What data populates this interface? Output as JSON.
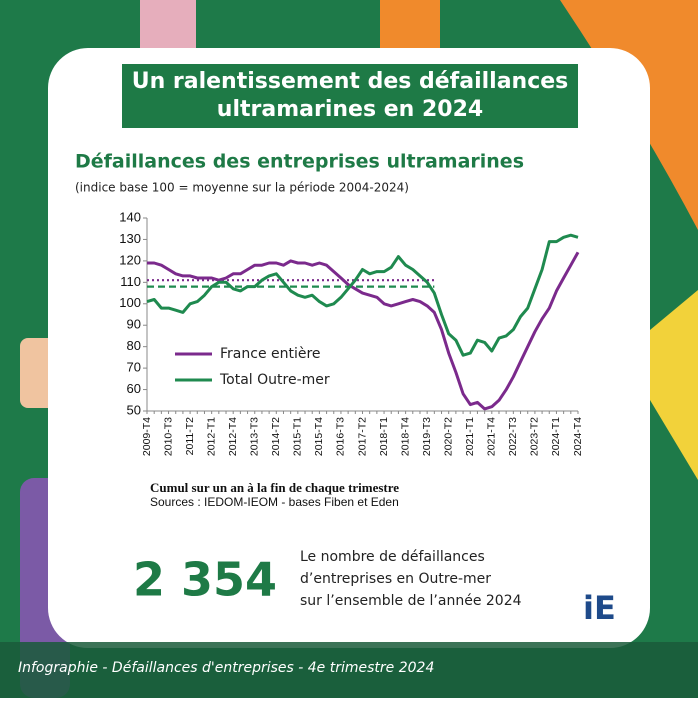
{
  "header": {
    "title_lines": [
      "Un ralentissement des défaillances",
      "ultramarines en 2024"
    ]
  },
  "chart_data": {
    "type": "line",
    "title": "Défaillances des entreprises ultramarines",
    "subtitle": "(indice base 100 = moyenne sur la période 2004-2024)",
    "xlabel": "Cumul sur un an à la fin de chaque trimestre",
    "source": "Sources : IEDOM-IEOM - bases Fiben et Eden",
    "categories": [
      "2009-T4",
      null,
      null,
      "2010-T3",
      null,
      null,
      "2011-T2",
      null,
      null,
      "2012-T1",
      null,
      null,
      "2012-T4",
      null,
      null,
      "2013-T3",
      null,
      null,
      "2014-T2",
      null,
      null,
      "2015-T1",
      null,
      null,
      "2015-T4",
      null,
      null,
      "2016-T3",
      null,
      null,
      "2017-T2",
      null,
      null,
      "2018-T1",
      null,
      null,
      "2018-T4",
      null,
      null,
      "2019-T3",
      null,
      null,
      "2020-T2",
      null,
      null,
      "2021-T1",
      null,
      null,
      "2021-T4",
      null,
      null,
      "2022-T3",
      null,
      null,
      "2023-T2",
      null,
      null,
      "2024-T1",
      null,
      null,
      "2024-T4"
    ],
    "series": [
      {
        "name": "France entière",
        "color": "#7b2a8c",
        "values": [
          119,
          119,
          118,
          116,
          114,
          113,
          113,
          112,
          112,
          112,
          111,
          112,
          114,
          114,
          116,
          118,
          118,
          119,
          119,
          118,
          120,
          119,
          119,
          118,
          119,
          118,
          115,
          112,
          109,
          107,
          105,
          104,
          103,
          100,
          99,
          100,
          101,
          102,
          101,
          99,
          96,
          88,
          77,
          68,
          58,
          53,
          54,
          51,
          52,
          55,
          60,
          66,
          73,
          80,
          87,
          93,
          98,
          106,
          112,
          118,
          124
        ]
      },
      {
        "name": "Total Outre-mer",
        "color": "#1f8a4f",
        "values": [
          101,
          102,
          98,
          98,
          97,
          96,
          100,
          101,
          104,
          108,
          110,
          110,
          107,
          106,
          108,
          108,
          111,
          113,
          114,
          110,
          106,
          104,
          103,
          104,
          101,
          99,
          100,
          103,
          107,
          111,
          116,
          114,
          115,
          115,
          117,
          122,
          118,
          116,
          113,
          110,
          105,
          95,
          86,
          83,
          76,
          77,
          83,
          82,
          78,
          84,
          85,
          88,
          94,
          98,
          107,
          116,
          129,
          129,
          131,
          132,
          131
        ]
      }
    ],
    "reference_lines": [
      {
        "value": 111,
        "color": "#7b2a8c",
        "style": "dotted",
        "start": "2009-T4",
        "end": "2019-T3"
      },
      {
        "value": 108,
        "color": "#1f8a4f",
        "style": "dashed",
        "start": "2009-T4",
        "end": "2019-T3"
      }
    ],
    "ylim": [
      50,
      140
    ],
    "yticks": [
      50,
      60,
      70,
      80,
      90,
      100,
      110,
      120,
      130,
      140
    ],
    "grid": false,
    "legend": "lower-left"
  },
  "highlight": {
    "number": "2 354",
    "description_lines": [
      "Le nombre de défaillances",
      "d’entreprises en Outre-mer",
      "sur l’ensemble de l’année 2024"
    ]
  },
  "logo": "iE",
  "footer": "Infographie - Défaillances d'entreprises - 4e trimestre 2024"
}
